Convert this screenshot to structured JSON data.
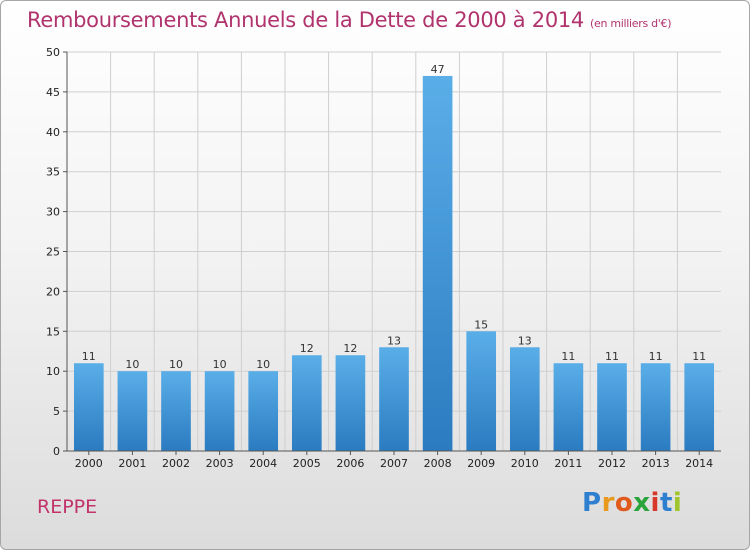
{
  "header": {
    "title": "Remboursements Annuels de la Dette de 2000 à 2014",
    "subtitle": "(en milliers d'€)"
  },
  "footer": {
    "commune": "REPPE",
    "logo_text": "Proxiti"
  },
  "colors": {
    "title": "#b0336d",
    "bar_top": "#5aaee8",
    "bar_bottom": "#2a7bc0",
    "axis": "#555555",
    "grid": "#cfcfcf"
  },
  "chart_data": {
    "type": "bar",
    "title": "Remboursements Annuels de la Dette de 2000 à 2014",
    "subtitle": "(en milliers d'€)",
    "categories": [
      "2000",
      "2001",
      "2002",
      "2003",
      "2004",
      "2005",
      "2006",
      "2007",
      "2008",
      "2009",
      "2010",
      "2011",
      "2012",
      "2013",
      "2014"
    ],
    "values": [
      11,
      10,
      10,
      10,
      10,
      12,
      12,
      13,
      47,
      15,
      13,
      11,
      11,
      11,
      11
    ],
    "ylim": [
      0,
      50
    ],
    "yticks": [
      0,
      5,
      10,
      15,
      20,
      25,
      30,
      35,
      40,
      45,
      50
    ],
    "grid": true,
    "data_labels": true
  }
}
